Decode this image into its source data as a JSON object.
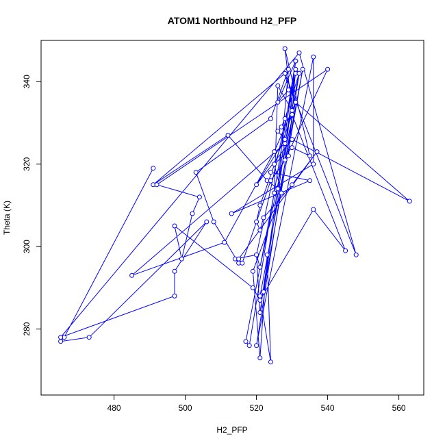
{
  "chart_data": {
    "type": "line",
    "title": "ATOM1 Northbound H2_PFP",
    "xlabel": "H2_PFP",
    "ylabel": "Theta (K)",
    "xlim": [
      459.5,
      567
    ],
    "ylim": [
      264,
      350
    ],
    "xticks": [
      480,
      500,
      520,
      540,
      560
    ],
    "yticks": [
      280,
      300,
      320,
      340
    ],
    "grid": false,
    "legend": "none",
    "line_color": "#0000ff",
    "marker": "open-circle",
    "series": [
      {
        "x": [
          491,
          466,
          465,
          473,
          506,
          497,
          497,
          465,
          532,
          548,
          528,
          491,
          512,
          523,
          526,
          529,
          524,
          503,
          508,
          515,
          514,
          520,
          521,
          531,
          518,
          517,
          525,
          526,
          530,
          528,
          535,
          530,
          525,
          527,
          519,
          521,
          523,
          524,
          521,
          533,
          522,
          531,
          520,
          521,
          531,
          528,
          529,
          526,
          531,
          528,
          540,
          492,
          504,
          502,
          499,
          497,
          519,
          521,
          536,
          545,
          530,
          521,
          520,
          521,
          522,
          530,
          537,
          515,
          516,
          524,
          529,
          531,
          532,
          528,
          527,
          526,
          528,
          520,
          530,
          563,
          531,
          525,
          511,
          485,
          528,
          532,
          520,
          536,
          536,
          513,
          535,
          524
        ],
        "y": [
          319,
          278,
          277,
          278,
          306,
          294,
          288,
          278,
          347,
          298,
          342,
          315,
          327,
          316,
          314,
          343,
          331,
          318,
          306,
          296,
          297,
          298,
          284,
          345,
          276,
          277,
          313,
          339,
          333,
          348,
          322,
          324,
          320,
          313,
          294,
          273,
          298,
          272,
          288,
          343,
          289,
          342,
          298,
          295,
          335,
          342,
          338,
          335,
          345,
          321,
          343,
          315,
          312,
          308,
          297,
          305,
          290,
          287,
          309,
          299,
          332,
          310,
          306,
          304,
          307,
          315,
          323,
          297,
          296,
          316,
          322,
          343,
          342,
          331,
          329,
          328,
          326,
          315,
          326,
          311,
          335,
          323,
          301,
          293,
          325,
          342,
          276,
          346,
          320,
          308,
          316,
          318
        ]
      }
    ]
  }
}
